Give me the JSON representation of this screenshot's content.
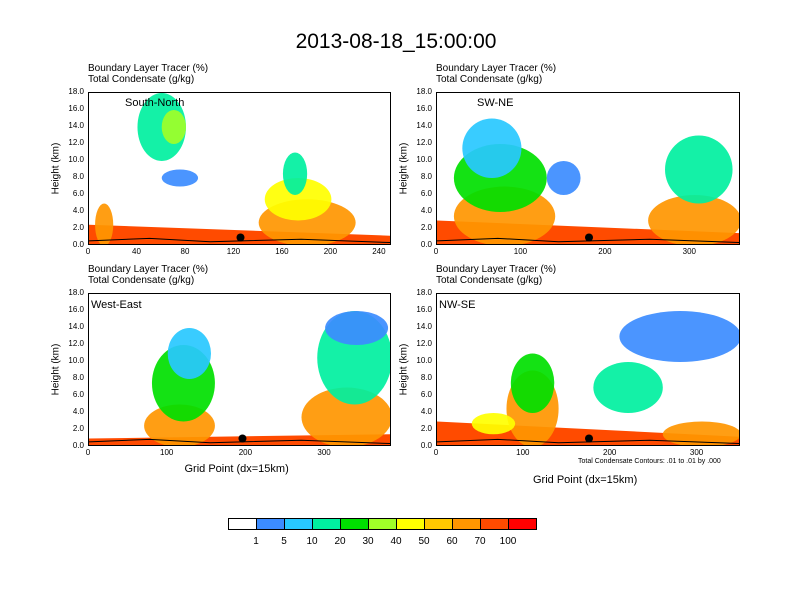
{
  "title": "2013-08-18_15:00:00",
  "chart_data": [
    {
      "type": "heatmap",
      "name": "South-North",
      "label_line1": "Boundary Layer Tracer    (%)",
      "label_line2": "Total Condensate    (g/kg)",
      "ylabel": "Height (km)",
      "xlabel": "",
      "xlim": [
        0,
        250
      ],
      "ylim": [
        0,
        18
      ],
      "xticks": [
        "0",
        "40",
        "80",
        "120",
        "160",
        "200",
        "240"
      ],
      "xtick_values": [
        0,
        40,
        80,
        120,
        160,
        200,
        240
      ],
      "yticks": [
        "0.0",
        "2.0",
        "4.0",
        "6.0",
        "8.0",
        "10.0",
        "12.0",
        "14.0",
        "16.0",
        "18.0"
      ],
      "marker_x": 125,
      "blobs": [
        {
          "x": [
            0,
            250
          ],
          "top": [
            2.5,
            1.2
          ],
          "level": 9
        },
        {
          "x": [
            5,
            20
          ],
          "y": [
            0,
            5
          ],
          "level": 8
        },
        {
          "x": [
            140,
            220
          ],
          "y": [
            0,
            5.5
          ],
          "level": 8
        },
        {
          "x": [
            145,
            200
          ],
          "y": [
            3,
            8
          ],
          "level": 6
        },
        {
          "x": [
            160,
            180
          ],
          "y": [
            6,
            11
          ],
          "level": 3
        },
        {
          "x": [
            40,
            80
          ],
          "y": [
            10,
            18
          ],
          "level": 3
        },
        {
          "x": [
            60,
            80
          ],
          "y": [
            12,
            16
          ],
          "level": 5
        },
        {
          "x": [
            60,
            90
          ],
          "y": [
            7,
            9
          ],
          "level": 1
        }
      ]
    },
    {
      "type": "heatmap",
      "name": "SW-NE",
      "label_line1": "Boundary Layer Tracer    (%)",
      "label_line2": "Total Condensate    (g/kg)",
      "ylabel": "Height (km)",
      "xlabel": "",
      "xlim": [
        0,
        360
      ],
      "ylim": [
        0,
        18
      ],
      "xticks": [
        "0",
        "100",
        "200",
        "300"
      ],
      "xtick_values": [
        0,
        100,
        200,
        300
      ],
      "yticks": [
        "0.0",
        "2.0",
        "4.0",
        "6.0",
        "8.0",
        "10.0",
        "12.0",
        "14.0",
        "16.0",
        "18.0"
      ],
      "marker_x": 180,
      "blobs": [
        {
          "x": [
            0,
            360
          ],
          "top": [
            3,
            1.5
          ],
          "level": 9
        },
        {
          "x": [
            20,
            140
          ],
          "y": [
            0,
            7
          ],
          "level": 8
        },
        {
          "x": [
            20,
            130
          ],
          "y": [
            4,
            12
          ],
          "level": 4
        },
        {
          "x": [
            30,
            100
          ],
          "y": [
            8,
            15
          ],
          "level": 2
        },
        {
          "x": [
            250,
            360
          ],
          "y": [
            0,
            6
          ],
          "level": 8
        },
        {
          "x": [
            270,
            350
          ],
          "y": [
            5,
            13
          ],
          "level": 3
        },
        {
          "x": [
            130,
            170
          ],
          "y": [
            6,
            10
          ],
          "level": 1
        }
      ]
    },
    {
      "type": "heatmap",
      "name": "West-East",
      "label_line1": "Boundary Layer Tracer    (%)",
      "label_line2": "Total Condensate    (g/kg)",
      "ylabel": "Height (km)",
      "xlabel": "Grid Point (dx=15km)",
      "xlim": [
        0,
        385
      ],
      "ylim": [
        0,
        18
      ],
      "xticks": [
        "0",
        "100",
        "200",
        "300"
      ],
      "xtick_values": [
        0,
        100,
        200,
        300
      ],
      "yticks": [
        "0.0",
        "2.0",
        "4.0",
        "6.0",
        "8.0",
        "10.0",
        "12.0",
        "14.0",
        "16.0",
        "18.0"
      ],
      "marker_x": 195,
      "blobs": [
        {
          "x": [
            0,
            385
          ],
          "top": [
            1,
            1.5
          ],
          "level": 9
        },
        {
          "x": [
            70,
            160
          ],
          "y": [
            0,
            5
          ],
          "level": 8
        },
        {
          "x": [
            80,
            160
          ],
          "y": [
            3,
            12
          ],
          "level": 4
        },
        {
          "x": [
            100,
            155
          ],
          "y": [
            8,
            14
          ],
          "level": 2
        },
        {
          "x": [
            270,
            385
          ],
          "y": [
            0,
            7
          ],
          "level": 8
        },
        {
          "x": [
            290,
            385
          ],
          "y": [
            5,
            16
          ],
          "level": 3
        },
        {
          "x": [
            300,
            380
          ],
          "y": [
            12,
            16
          ],
          "level": 1
        }
      ]
    },
    {
      "type": "heatmap",
      "name": "NW-SE",
      "label_line1": "Boundary Layer Tracer    (%)",
      "label_line2": "Total Condensate    (g/kg)",
      "ylabel": "Height (km)",
      "xlabel": "Grid Point (dx=15km)",
      "xlim": [
        0,
        350
      ],
      "ylim": [
        0,
        18
      ],
      "xticks": [
        "0",
        "100",
        "200",
        "300"
      ],
      "xtick_values": [
        0,
        100,
        200,
        300
      ],
      "yticks": [
        "0.0",
        "2.0",
        "4.0",
        "6.0",
        "8.0",
        "10.0",
        "12.0",
        "14.0",
        "16.0",
        "18.0"
      ],
      "marker_x": 175,
      "blobs": [
        {
          "x": [
            0,
            350
          ],
          "top": [
            3,
            1.2
          ],
          "level": 9
        },
        {
          "x": [
            80,
            140
          ],
          "y": [
            0,
            9
          ],
          "level": 8
        },
        {
          "x": [
            85,
            135
          ],
          "y": [
            4,
            11
          ],
          "level": 4
        },
        {
          "x": [
            40,
            90
          ],
          "y": [
            1.5,
            4
          ],
          "level": 6
        },
        {
          "x": [
            180,
            260
          ],
          "y": [
            4,
            10
          ],
          "level": 3
        },
        {
          "x": [
            210,
            350
          ],
          "y": [
            10,
            16
          ],
          "level": 1
        },
        {
          "x": [
            260,
            350
          ],
          "y": [
            0,
            3
          ],
          "level": 8
        }
      ]
    }
  ],
  "footnote": "Total Condensate Contours: .01 to .01 by .000",
  "legend": {
    "labels": [
      "1",
      "5",
      "10",
      "20",
      "30",
      "40",
      "50",
      "60",
      "70",
      "100"
    ],
    "colors": [
      "#ffffff",
      "#3c8cff",
      "#28c8ff",
      "#00f0a0",
      "#00e000",
      "#a0ff28",
      "#ffff00",
      "#ffc800",
      "#ff9600",
      "#ff4b00",
      "#ff0000"
    ]
  }
}
